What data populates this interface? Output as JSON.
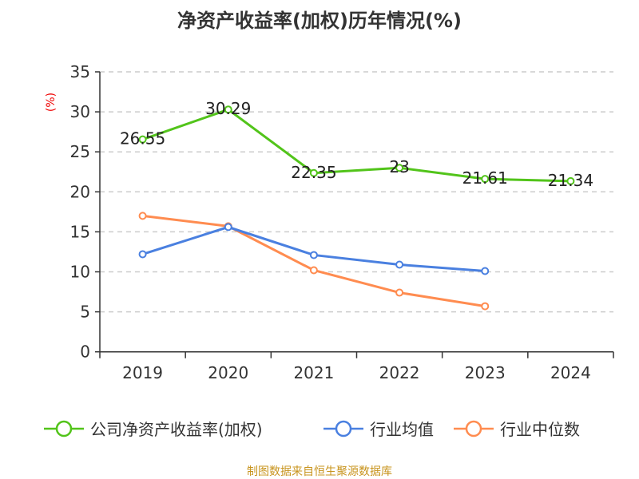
{
  "chart_data": {
    "type": "line",
    "title": "净资产收益率(加权)历年情况(%)",
    "ylabel": "(%)",
    "categories": [
      "2019",
      "2020",
      "2021",
      "2022",
      "2023",
      "2024"
    ],
    "ylim": [
      0,
      35
    ],
    "yticks": [
      0,
      5,
      10,
      15,
      20,
      25,
      30,
      35
    ],
    "grid": true,
    "legend_position": "bottom",
    "series": [
      {
        "name": "公司净资产收益率(加权)",
        "color": "#52c41a",
        "values": [
          26.55,
          30.29,
          22.35,
          23,
          21.61,
          21.34
        ],
        "labels": [
          "26.55",
          "30.29",
          "22.35",
          "23",
          "21.61",
          "21.34"
        ]
      },
      {
        "name": "行业均值",
        "color": "#4a80e0",
        "values": [
          12.2,
          15.6,
          12.1,
          10.9,
          10.1,
          null
        ]
      },
      {
        "name": "行业中位数",
        "color": "#ff8c50",
        "values": [
          17.0,
          15.7,
          10.2,
          7.4,
          5.7,
          null
        ]
      }
    ]
  },
  "source": "制图数据来自恒生聚源数据库"
}
